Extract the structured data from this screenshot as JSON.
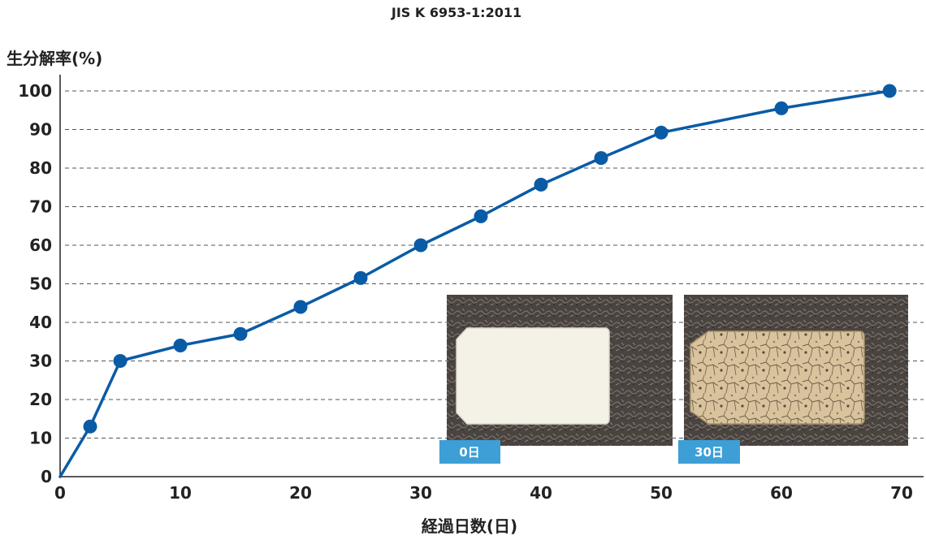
{
  "chart_data": {
    "type": "line",
    "title": "JIS K 6953-1:2011",
    "ylabel": "生分解率(%)",
    "xlabel": "経過日数(日)",
    "xlim": [
      0,
      70
    ],
    "ylim": [
      0,
      100
    ],
    "xticks": [
      0,
      10,
      20,
      30,
      40,
      50,
      60,
      70
    ],
    "yticks": [
      0,
      10,
      20,
      30,
      40,
      50,
      60,
      70,
      80,
      90,
      100
    ],
    "grid": "horizontal-dashed",
    "series": [
      {
        "color": "#0a5ba6",
        "points": [
          {
            "x": 0,
            "y": 0
          },
          {
            "x": 2.5,
            "y": 13
          },
          {
            "x": 5,
            "y": 30
          },
          {
            "x": 10,
            "y": 34
          },
          {
            "x": 15,
            "y": 37
          },
          {
            "x": 20,
            "y": 44
          },
          {
            "x": 25,
            "y": 51.5
          },
          {
            "x": 30,
            "y": 60
          },
          {
            "x": 35,
            "y": 67.5
          },
          {
            "x": 40,
            "y": 75.7
          },
          {
            "x": 45,
            "y": 82.6
          },
          {
            "x": 50,
            "y": 89.2
          },
          {
            "x": 60,
            "y": 95.5
          },
          {
            "x": 69,
            "y": 100
          }
        ]
      }
    ]
  },
  "photos": [
    {
      "label": "0日",
      "icon": "white-sample-photo"
    },
    {
      "label": "30日",
      "icon": "degraded-sample-photo"
    }
  ],
  "colors": {
    "line": "#0a5ba6",
    "label_bg": "#3d9fd6",
    "grid": "#555555"
  }
}
